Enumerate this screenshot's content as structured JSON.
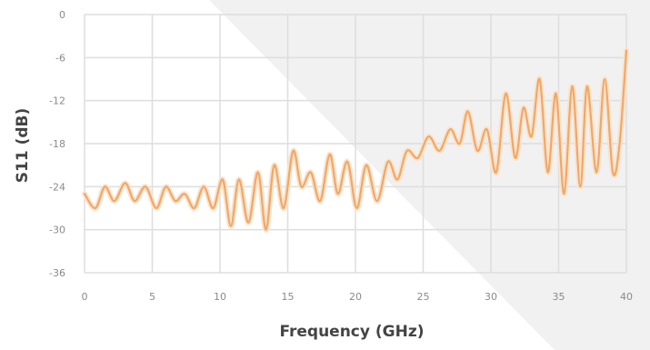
{
  "chart_data": {
    "type": "line",
    "title": "",
    "xlabel": "Frequency (GHz)",
    "ylabel": "S11 (dB)",
    "xlim": [
      0,
      40
    ],
    "ylim": [
      -36,
      0
    ],
    "x_ticks": [
      "0",
      "5",
      "10",
      "15",
      "20",
      "25",
      "30",
      "35",
      "40"
    ],
    "y_ticks": [
      "0",
      "-6",
      "-12",
      "-18",
      "-24",
      "-30",
      "-36"
    ],
    "grid": true,
    "legend": "none",
    "series": [
      {
        "color": "#f0a868",
        "x": [
          0,
          0.8,
          1.5,
          2.2,
          3.0,
          3.7,
          4.5,
          5.3,
          6.0,
          6.7,
          7.4,
          8.1,
          8.8,
          9.5,
          10.2,
          10.8,
          11.4,
          12.1,
          12.8,
          13.4,
          14.0,
          14.7,
          15.4,
          16.0,
          16.7,
          17.4,
          18.1,
          18.7,
          19.4,
          20.1,
          20.8,
          21.6,
          22.4,
          23.1,
          23.8,
          24.6,
          25.4,
          26.2,
          27.0,
          27.7,
          28.3,
          29.0,
          29.7,
          30.4,
          31.1,
          31.8,
          32.4,
          33.0,
          33.6,
          34.2,
          34.8,
          35.4,
          36.0,
          36.6,
          37.1,
          37.8,
          38.4,
          39.0,
          39.5,
          40.0
        ],
        "y": [
          -25,
          -27,
          -24,
          -26,
          -23.5,
          -26,
          -24,
          -27,
          -24,
          -26,
          -25,
          -27,
          -24,
          -27,
          -23,
          -29.5,
          -23,
          -29,
          -22,
          -30,
          -21,
          -27,
          -19,
          -24,
          -22,
          -26,
          -19.5,
          -25,
          -20.5,
          -27,
          -21,
          -26,
          -20.5,
          -23,
          -19,
          -20,
          -17,
          -19,
          -16,
          -18,
          -13.5,
          -19,
          -16,
          -22,
          -11,
          -20,
          -13,
          -17,
          -9,
          -22,
          -11,
          -25,
          -10,
          -24,
          -10,
          -22,
          -9,
          -22,
          -18,
          -5
        ]
      }
    ]
  }
}
